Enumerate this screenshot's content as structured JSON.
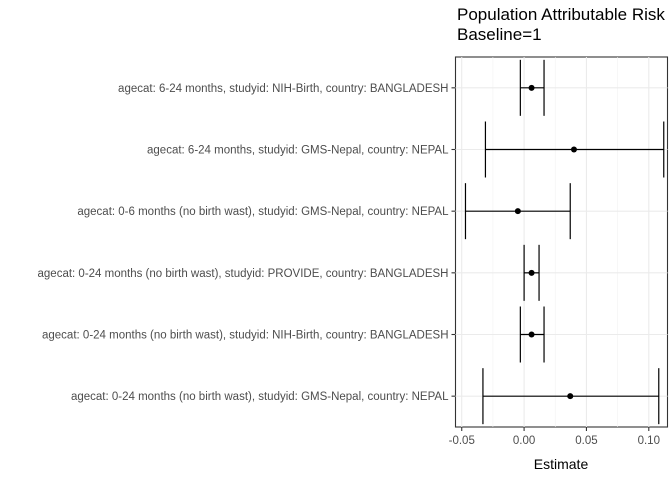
{
  "chart_data": {
    "type": "errorbar",
    "title": "Population Attributable Risk",
    "subtitle": "Baseline=1",
    "xlabel": "Estimate",
    "ylabel": "",
    "xlim": [
      -0.055,
      0.115
    ],
    "x_ticks": [
      -0.05,
      0.0,
      0.05,
      0.1
    ],
    "x_tick_labels": [
      "-0.05",
      "0.00",
      "0.05",
      "0.10"
    ],
    "grid": true,
    "points": [
      {
        "label": "agecat: 6-24 months, studyid: NIH-Birth, country: BANGLADESH",
        "estimate": 0.006,
        "lower": -0.003,
        "upper": 0.016
      },
      {
        "label": "agecat: 6-24 months, studyid: GMS-Nepal, country: NEPAL",
        "estimate": 0.04,
        "lower": -0.031,
        "upper": 0.112
      },
      {
        "label": "agecat: 0-6 months (no birth wast), studyid: GMS-Nepal, country: NEPAL",
        "estimate": -0.005,
        "lower": -0.047,
        "upper": 0.037
      },
      {
        "label": "agecat: 0-24 months (no birth wast), studyid: PROVIDE, country: BANGLADESH",
        "estimate": 0.006,
        "lower": 0.0,
        "upper": 0.012
      },
      {
        "label": "agecat: 0-24 months (no birth wast), studyid: NIH-Birth, country: BANGLADESH",
        "estimate": 0.006,
        "lower": -0.003,
        "upper": 0.016
      },
      {
        "label": "agecat: 0-24 months (no birth wast), studyid: GMS-Nepal, country: NEPAL",
        "estimate": 0.037,
        "lower": -0.033,
        "upper": 0.108
      }
    ]
  }
}
